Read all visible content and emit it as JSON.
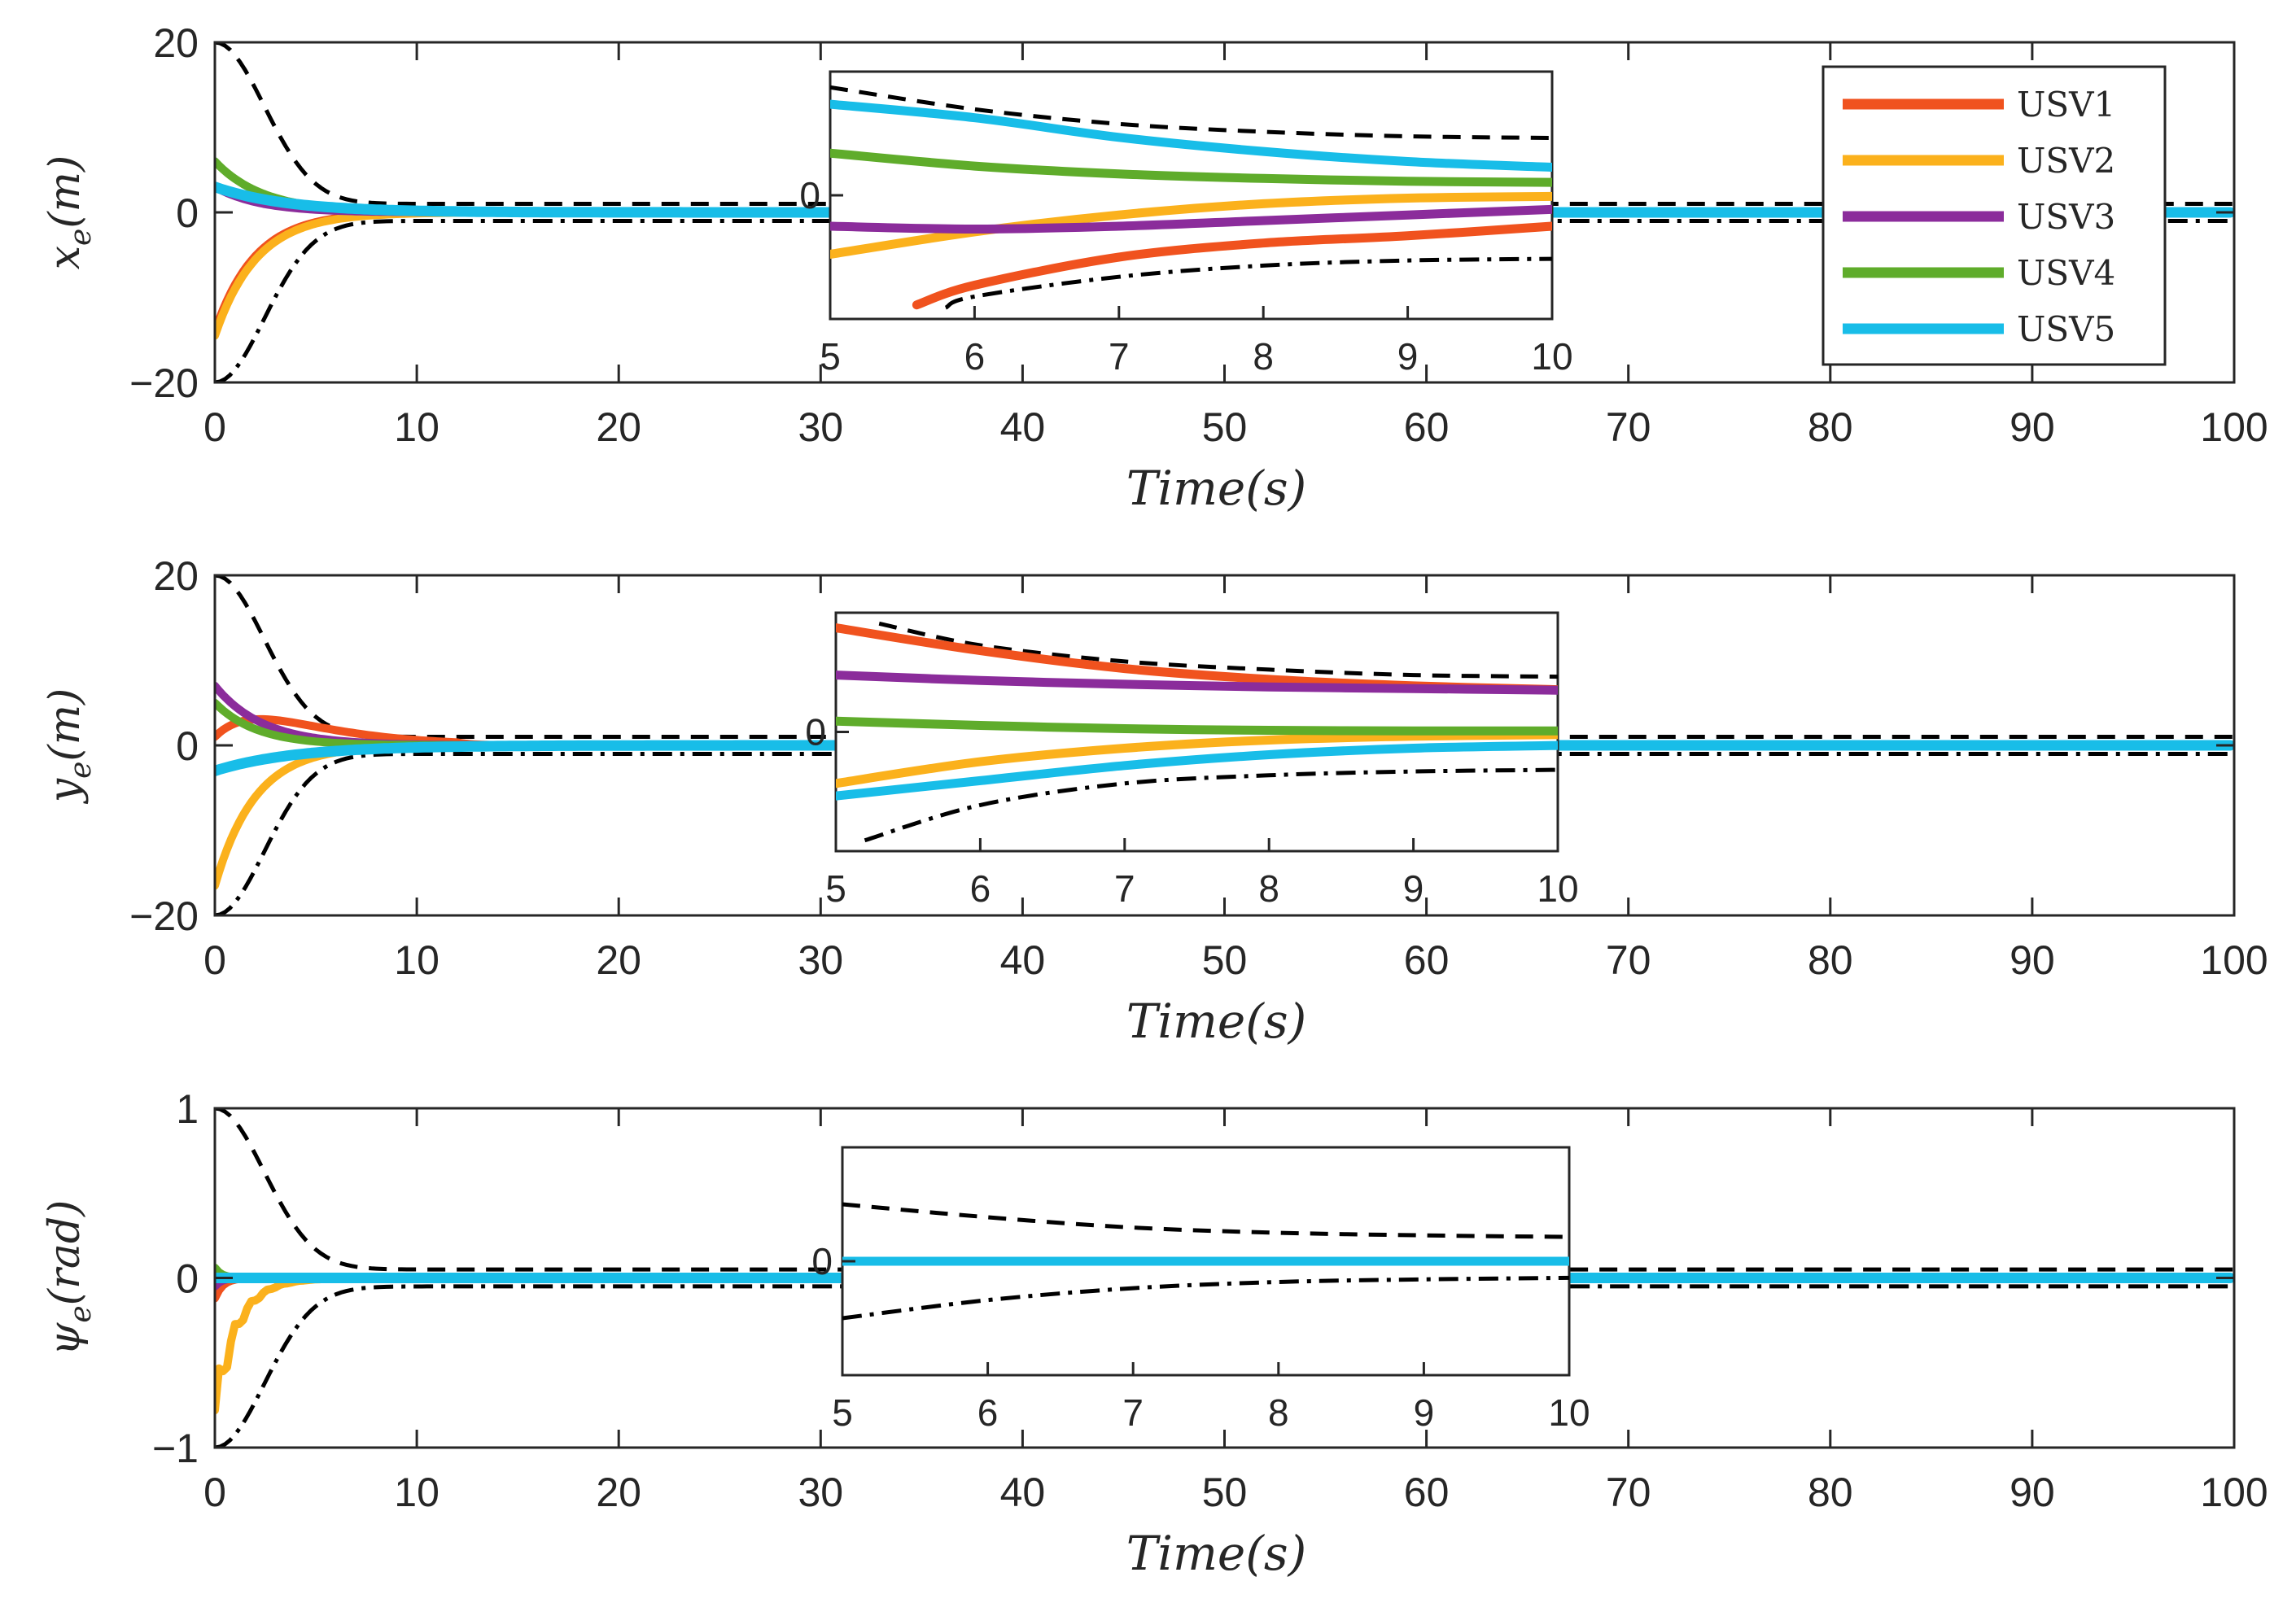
{
  "chart_data": [
    {
      "type": "line",
      "panel_id": "x",
      "ylabel_main": "x",
      "ylabel_sub": "e",
      "ylabel_rest": "(m)",
      "xlabel": "Time(s)",
      "xlim": [
        0,
        100
      ],
      "ylim": [
        -20,
        20
      ],
      "xticks": [
        "0",
        "10",
        "20",
        "30",
        "40",
        "50",
        "60",
        "70",
        "80",
        "90",
        "100"
      ],
      "yticks": [
        {
          "v": 20,
          "label": "20"
        },
        {
          "v": 0,
          "label": "0"
        },
        {
          "v": -20,
          "label": "−20"
        }
      ],
      "bounds": {
        "upper": {
          "start": 20,
          "end": 1.0,
          "rate": 0.55,
          "style": "dashed"
        },
        "lower": {
          "start": -20,
          "end": -1.0,
          "rate": 0.55,
          "style": "dashdot"
        }
      },
      "series": [
        {
          "name": "USV1",
          "color": "#F0521E",
          "initial": -14,
          "rate": 0.5
        },
        {
          "name": "USV2",
          "color": "#FBB11C",
          "initial": -14.5,
          "rate": 0.48
        },
        {
          "name": "USV3",
          "color": "#8B2C9B",
          "initial": 3,
          "rate": 0.45
        },
        {
          "name": "USV4",
          "color": "#5FAC2B",
          "initial": 6,
          "rate": 0.42
        },
        {
          "name": "USV5",
          "color": "#18BDE8",
          "initial": 3,
          "rate": 0.28
        }
      ],
      "inset": {
        "xlim": [
          5,
          10
        ],
        "xticks": [
          "5",
          "6",
          "7",
          "8",
          "9",
          "10"
        ],
        "ytick_label": "0",
        "upper": [
          [
            5,
            1.92
          ],
          [
            6,
            1.53
          ],
          [
            7,
            1.27
          ],
          [
            8,
            1.13
          ],
          [
            9,
            1.05
          ],
          [
            10,
            1.02
          ]
        ],
        "lower": [
          [
            5.8,
            -2.0
          ],
          [
            6,
            -1.8
          ],
          [
            7,
            -1.45
          ],
          [
            8,
            -1.25
          ],
          [
            9,
            -1.16
          ],
          [
            10,
            -1.13
          ]
        ],
        "curves": [
          {
            "name": "USV1",
            "points": [
              [
                5.6,
                -1.95
              ],
              [
                6,
                -1.6
              ],
              [
                7,
                -1.1
              ],
              [
                8,
                -0.85
              ],
              [
                9,
                -0.72
              ],
              [
                10,
                -0.55
              ]
            ]
          },
          {
            "name": "USV2",
            "points": [
              [
                5,
                -1.05
              ],
              [
                6,
                -0.65
              ],
              [
                7,
                -0.35
              ],
              [
                8,
                -0.15
              ],
              [
                9,
                -0.05
              ],
              [
                10,
                -0.02
              ]
            ]
          },
          {
            "name": "USV3",
            "points": [
              [
                5,
                -0.55
              ],
              [
                6,
                -0.6
              ],
              [
                7,
                -0.55
              ],
              [
                8,
                -0.45
              ],
              [
                9,
                -0.35
              ],
              [
                10,
                -0.25
              ]
            ]
          },
          {
            "name": "USV4",
            "points": [
              [
                5,
                0.75
              ],
              [
                6,
                0.52
              ],
              [
                7,
                0.38
              ],
              [
                8,
                0.3
              ],
              [
                9,
                0.25
              ],
              [
                10,
                0.23
              ]
            ]
          },
          {
            "name": "USV5",
            "points": [
              [
                5,
                1.62
              ],
              [
                6,
                1.38
              ],
              [
                7,
                1.03
              ],
              [
                8,
                0.78
              ],
              [
                9,
                0.6
              ],
              [
                10,
                0.5
              ]
            ]
          }
        ]
      }
    },
    {
      "type": "line",
      "panel_id": "y",
      "ylabel_main": "y",
      "ylabel_sub": "e",
      "ylabel_rest": "(m)",
      "xlabel": "Time(s)",
      "xlim": [
        0,
        100
      ],
      "ylim": [
        -20,
        20
      ],
      "xticks": [
        "0",
        "10",
        "20",
        "30",
        "40",
        "50",
        "60",
        "70",
        "80",
        "90",
        "100"
      ],
      "yticks": [
        {
          "v": 20,
          "label": "20"
        },
        {
          "v": 0,
          "label": "0"
        },
        {
          "v": -20,
          "label": "−20"
        }
      ],
      "bounds": {
        "upper": {
          "start": 20,
          "end": 1.0,
          "rate": 0.55,
          "style": "dashed"
        },
        "lower": {
          "start": -20,
          "end": -1.0,
          "rate": 0.55,
          "style": "dashdot"
        }
      },
      "series": [
        {
          "name": "USV1",
          "color": "#F0521E",
          "initial": 1,
          "rate": 0.45,
          "bump": 3.5
        },
        {
          "name": "USV2",
          "color": "#FBB11C",
          "initial": -16.5,
          "rate": 0.5
        },
        {
          "name": "USV3",
          "color": "#8B2C9B",
          "initial": 7,
          "rate": 0.42
        },
        {
          "name": "USV4",
          "color": "#5FAC2B",
          "initial": 5,
          "rate": 0.48
        },
        {
          "name": "USV5",
          "color": "#18BDE8",
          "initial": -3,
          "rate": 0.25
        }
      ],
      "inset": {
        "xlim": [
          5,
          10
        ],
        "xticks": [
          "5",
          "6",
          "7",
          "8",
          "9",
          "10"
        ],
        "ytick_label": "0",
        "upper": [
          [
            5.3,
            2.0
          ],
          [
            6,
            1.6
          ],
          [
            7,
            1.3
          ],
          [
            8,
            1.15
          ],
          [
            9,
            1.05
          ],
          [
            10,
            1.02
          ]
        ],
        "lower": [
          [
            5.2,
            -2.0
          ],
          [
            6,
            -1.35
          ],
          [
            7,
            -0.95
          ],
          [
            8,
            -0.8
          ],
          [
            9,
            -0.73
          ],
          [
            10,
            -0.7
          ]
        ],
        "curves": [
          {
            "name": "USV1",
            "points": [
              [
                5,
                1.92
              ],
              [
                6,
                1.5
              ],
              [
                7,
                1.17
              ],
              [
                8,
                0.97
              ],
              [
                9,
                0.85
              ],
              [
                10,
                0.78
              ]
            ]
          },
          {
            "name": "USV2",
            "points": [
              [
                5,
                -0.95
              ],
              [
                6,
                -0.55
              ],
              [
                7,
                -0.3
              ],
              [
                8,
                -0.15
              ],
              [
                9,
                -0.08
              ],
              [
                10,
                -0.05
              ]
            ]
          },
          {
            "name": "USV3",
            "points": [
              [
                5,
                1.05
              ],
              [
                6,
                0.95
              ],
              [
                7,
                0.88
              ],
              [
                8,
                0.83
              ],
              [
                9,
                0.8
              ],
              [
                10,
                0.77
              ]
            ]
          },
          {
            "name": "USV4",
            "points": [
              [
                5,
                0.2
              ],
              [
                6,
                0.12
              ],
              [
                7,
                0.06
              ],
              [
                8,
                0.03
              ],
              [
                9,
                0.02
              ],
              [
                10,
                0.02
              ]
            ]
          },
          {
            "name": "USV5",
            "points": [
              [
                5,
                -1.18
              ],
              [
                6,
                -0.9
              ],
              [
                7,
                -0.62
              ],
              [
                8,
                -0.42
              ],
              [
                9,
                -0.3
              ],
              [
                10,
                -0.25
              ]
            ]
          }
        ]
      }
    },
    {
      "type": "line",
      "panel_id": "psi",
      "ylabel_main": "ψ",
      "ylabel_sub": "e",
      "ylabel_rest": "(rad)",
      "xlabel": "Time(s)",
      "xlim": [
        0,
        100
      ],
      "ylim": [
        -1,
        1
      ],
      "xticks": [
        "0",
        "10",
        "20",
        "30",
        "40",
        "50",
        "60",
        "70",
        "80",
        "90",
        "100"
      ],
      "yticks": [
        {
          "v": 1,
          "label": "1"
        },
        {
          "v": 0,
          "label": "0"
        },
        {
          "v": -1,
          "label": "−1"
        }
      ],
      "bounds": {
        "upper": {
          "start": 1,
          "end": 0.05,
          "rate": 0.55,
          "style": "dashed"
        },
        "lower": {
          "start": -1,
          "end": -0.05,
          "rate": 0.55,
          "style": "dashdot"
        }
      },
      "series": [
        {
          "name": "USV1",
          "color": "#F0521E",
          "initial": -0.12,
          "rate": 2.5
        },
        {
          "name": "USV2",
          "color": "#FBB11C",
          "initial": -0.78,
          "rate": 0.9
        },
        {
          "name": "USV3",
          "color": "#8B2C9B",
          "initial": -0.05,
          "rate": 3.0
        },
        {
          "name": "USV4",
          "color": "#5FAC2B",
          "initial": 0.06,
          "rate": 3.0
        },
        {
          "name": "USV5",
          "color": "#18BDE8",
          "initial": 0.0,
          "rate": 3.0
        }
      ],
      "inset": {
        "xlim": [
          5,
          10
        ],
        "xticks": [
          "5",
          "6",
          "7",
          "8",
          "9",
          "10"
        ],
        "ytick_label": "0",
        "upper": [
          [
            5,
            1.1
          ],
          [
            6,
            0.85
          ],
          [
            7,
            0.65
          ],
          [
            8,
            0.55
          ],
          [
            9,
            0.5
          ],
          [
            10,
            0.47
          ]
        ],
        "lower": [
          [
            5,
            -1.1
          ],
          [
            6,
            -0.75
          ],
          [
            7,
            -0.52
          ],
          [
            8,
            -0.4
          ],
          [
            9,
            -0.35
          ],
          [
            10,
            -0.32
          ]
        ],
        "curves": [
          {
            "name": "USV5",
            "points": [
              [
                5,
                0.0
              ],
              [
                10,
                0.0
              ]
            ]
          }
        ]
      }
    }
  ],
  "legend": {
    "items": [
      {
        "label": "USV1",
        "color": "#F0521E"
      },
      {
        "label": "USV2",
        "color": "#FBB11C"
      },
      {
        "label": "USV3",
        "color": "#8B2C9B"
      },
      {
        "label": "USV4",
        "color": "#5FAC2B"
      },
      {
        "label": "USV5",
        "color": "#18BDE8"
      }
    ]
  }
}
